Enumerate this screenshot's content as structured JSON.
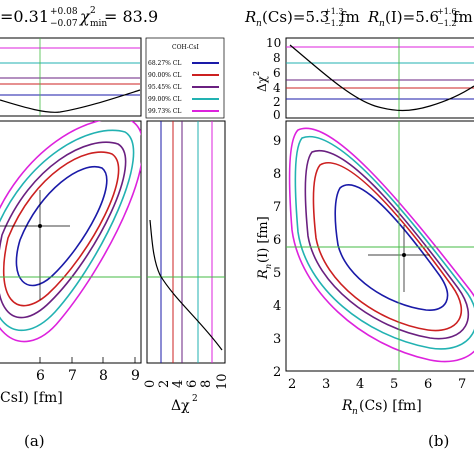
{
  "colors": {
    "cl68": "#1a1aa8",
    "cl90": "#cc2020",
    "cl95": "#6a2080",
    "cl99": "#22b2b2",
    "cl9973": "#dd22dd",
    "fit_lines": "#44bb44",
    "marker": "#000000"
  },
  "left_panel": {
    "title_prefix": "=0.31",
    "title_sup": "+0.08",
    "title_sub": "−0.07",
    "chi_label": "χ",
    "chi_sup": "2",
    "chi_sub": "min",
    "chi_value": "= 83.9",
    "legend": {
      "title": "COH-CsI",
      "entries": [
        "68.27% CL",
        "90.00% CL",
        "95.45% CL",
        "99.00% CL",
        "99.73% CL"
      ]
    },
    "x_ticks": [
      "6",
      "7",
      "8",
      "9"
    ],
    "x_label_partial": "CsI) [fm]",
    "side_ticks": [
      "0",
      "2",
      "4",
      "6",
      "8",
      "10"
    ],
    "side_label": "Δχ",
    "side_label_sup": "2",
    "caption": "(a)"
  },
  "right_panel": {
    "title1_prefix": "R",
    "title1_sub": "n",
    "title1_mid": "(Cs)=5.3",
    "title1_sup": "+1.3",
    "title1_subv": "−1.2",
    "title1_unit": " fm",
    "title2_prefix": "R",
    "title2_sub": "n",
    "title2_mid": "(I)=5.6",
    "title2_sup": "+1.6",
    "title2_subv": "−1.2",
    "title2_unit": " fm",
    "top_y_ticks": [
      "10",
      "8",
      "6",
      "4",
      "2",
      "0"
    ],
    "top_y_label": "Δχ",
    "top_y_label_sup": "2",
    "main_y_ticks": [
      "9",
      "8",
      "7",
      "6",
      "5",
      "4",
      "3",
      "2"
    ],
    "main_y_label": "R",
    "main_y_label_sub": "n",
    "main_y_label_rest": "(I) [fm]",
    "x_ticks": [
      "2",
      "3",
      "4",
      "5",
      "6",
      "7"
    ],
    "x_label": "R",
    "x_label_sub": "n",
    "x_label_rest": "(Cs) [fm]",
    "caption": "(b)"
  },
  "chart_data": [
    {
      "type": "line",
      "panel": "left",
      "description_levels": [
        "68.27% CL",
        "90.00% CL",
        "95.45% CL",
        "99.00% CL",
        "99.73% CL"
      ],
      "delta_chi2_levels": [
        2.3,
        4.61,
        6.18,
        9.21,
        11.83
      ],
      "best_fit_x": 6.5,
      "x_axis_visible_range": [
        5.3,
        9.6
      ],
      "side_axis_range": [
        0,
        10
      ]
    },
    {
      "type": "line",
      "panel": "right",
      "best_fit": {
        "x": 5.3,
        "y": 5.6
      },
      "x_range": [
        2,
        7.5
      ],
      "y_range": [
        2,
        9.5
      ],
      "top_y_range": [
        0,
        10
      ],
      "delta_chi2_levels": [
        2.3,
        4.61,
        6.18,
        9.21,
        11.83
      ]
    }
  ]
}
